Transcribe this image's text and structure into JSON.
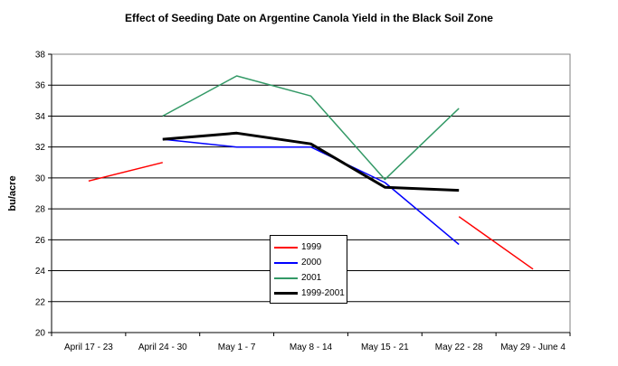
{
  "chart_data": {
    "type": "line",
    "title": "Effect of Seeding Date on Argentine Canola Yield in the Black Soil Zone",
    "xlabel": "",
    "ylabel": "bu/acre",
    "categories": [
      "April 17 - 23",
      "April 24 - 30",
      "May 1 - 7",
      "May 8 - 14",
      "May 15 - 21",
      "May 22 - 28",
      "May 29 - June 4"
    ],
    "ylim": [
      20,
      38
    ],
    "yticks": [
      "20",
      "22",
      "24",
      "26",
      "28",
      "30",
      "32",
      "34",
      "36",
      "38"
    ],
    "grid": "horizontal",
    "legend_position": "center-bottom",
    "series": [
      {
        "name": "1999",
        "color": "#ff0000",
        "width": 1.5,
        "values": [
          29.8,
          31.0,
          null,
          null,
          null,
          27.5,
          24.1
        ]
      },
      {
        "name": "2000",
        "color": "#0000ff",
        "width": 1.5,
        "values": [
          null,
          32.5,
          32.0,
          32.0,
          29.7,
          25.7,
          null
        ]
      },
      {
        "name": "2001",
        "color": "#339966",
        "width": 1.5,
        "values": [
          null,
          34.0,
          36.6,
          35.3,
          29.9,
          34.5,
          null
        ]
      },
      {
        "name": "1999-2001",
        "color": "#000000",
        "width": 3,
        "values": [
          null,
          32.5,
          32.9,
          32.2,
          29.4,
          29.2,
          null
        ]
      }
    ]
  }
}
